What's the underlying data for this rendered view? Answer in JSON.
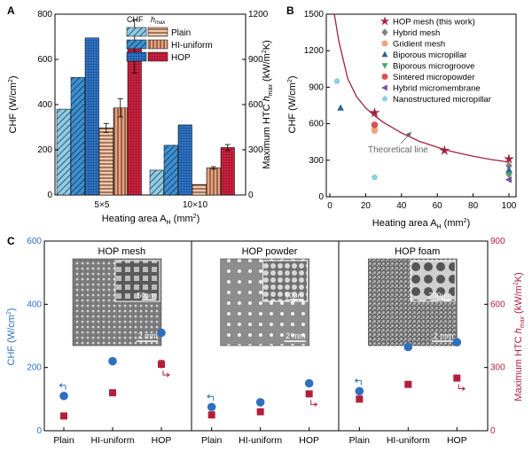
{
  "panels": {
    "a": "A",
    "b": "B",
    "c": "C"
  },
  "chart_data": [
    {
      "type": "bar",
      "panel": "A",
      "xlabel": "Heating area A",
      "xlabel_sub": "H",
      "xlabel_unit": " (mm",
      "xlabel_sup": "2",
      "xlabel_end": ")",
      "ylabel_left": "CHF (W/cm",
      "ylabel_left_sup": "2",
      "ylabel_left_end": ")",
      "ylabel_right": "Maximum HTC ",
      "ylabel_right_italic": "h",
      "ylabel_right_sub": "max",
      "ylabel_right_unit": " (kW/m",
      "ylabel_right_sup": "2",
      "ylabel_right_end": "K)",
      "ylim_left": [
        0,
        800
      ],
      "ylim_right": [
        0,
        1200
      ],
      "yticks_left": [
        "0",
        "200",
        "400",
        "600",
        "800"
      ],
      "yticks_right": [
        "0",
        "300",
        "600",
        "900",
        "1200"
      ],
      "categories": [
        "5×5",
        "10×10"
      ],
      "legend_header_chf": "CHF",
      "legend_header_h": "h",
      "legend_header_h_sub": "max",
      "legend_labels": [
        "Plain",
        "HI-uniform",
        "HOP"
      ],
      "series": [
        {
          "name": "CHF Plain",
          "axis": "left",
          "values": [
            380,
            110
          ]
        },
        {
          "name": "CHF HI-uniform",
          "axis": "left",
          "values": [
            520,
            220
          ]
        },
        {
          "name": "CHF HOP",
          "axis": "left",
          "values": [
            695,
            310
          ]
        },
        {
          "name": "hmax Plain",
          "axis": "right",
          "values": [
            445,
            70
          ],
          "err": [
            30,
            0
          ]
        },
        {
          "name": "hmax HI-uniform",
          "axis": "right",
          "values": [
            578,
            180
          ],
          "err": [
            60,
            8
          ]
        },
        {
          "name": "hmax HOP",
          "axis": "right",
          "values": [
            985,
            315
          ],
          "err": [
            175,
            20
          ]
        }
      ]
    },
    {
      "type": "scatter",
      "panel": "B",
      "xlabel": "Heating area A",
      "xlabel_sub": "H",
      "xlabel_unit": " (mm",
      "xlabel_sup": "2",
      "xlabel_end": ")",
      "ylabel": "CHF (W/cm",
      "ylabel_sup": "2",
      "ylabel_end": ")",
      "xlim": [
        0,
        100
      ],
      "ylim": [
        0,
        1500
      ],
      "xticks": [
        "0",
        "20",
        "40",
        "60",
        "80",
        "100"
      ],
      "yticks": [
        "0",
        "300",
        "600",
        "900",
        "1200",
        "1500"
      ],
      "annotation": "Theoretical line",
      "series": [
        {
          "name": "HOP mesh (this work)",
          "marker": "star",
          "color": "#a3213f",
          "points": [
            [
              25,
              690
            ],
            [
              64,
              380
            ],
            [
              100,
              310
            ]
          ]
        },
        {
          "name": "Hybrid mesh",
          "marker": "diamond",
          "color": "#808080",
          "points": [
            [
              100,
              255
            ]
          ]
        },
        {
          "name": "Gridient mesh",
          "marker": "circle",
          "color": "#f0a47c",
          "points": [
            [
              25,
              545
            ],
            [
              100,
              190
            ]
          ]
        },
        {
          "name": "Biporous micropillar",
          "marker": "triangle-up",
          "color": "#2f5e9e",
          "points": [
            [
              6,
              730
            ],
            [
              100,
              220
            ]
          ]
        },
        {
          "name": "Biporous microgroove",
          "marker": "triangle-down",
          "color": "#3fa771",
          "points": [
            [
              100,
              180
            ]
          ]
        },
        {
          "name": "Sintered micropowder",
          "marker": "circle",
          "color": "#d9534f",
          "points": [
            [
              25,
              590
            ]
          ]
        },
        {
          "name": "Hybrid micromembrane",
          "marker": "triangle-left",
          "color": "#7b4fa0",
          "points": [
            [
              100,
              140
            ]
          ]
        },
        {
          "name": "Nanostructured micropillar",
          "marker": "pentagon",
          "color": "#8ed0e0",
          "points": [
            [
              4,
              950
            ],
            [
              25,
              160
            ]
          ]
        }
      ],
      "theoretical_line": {
        "x": [
          2.5,
          5,
          10,
          15,
          20,
          25,
          30,
          40,
          50,
          64,
          70,
          80,
          90,
          100
        ],
        "y": [
          1500,
          1280,
          970,
          820,
          730,
          665,
          610,
          525,
          455,
          388,
          365,
          333,
          306,
          285
        ]
      }
    },
    {
      "type": "scatter",
      "panel": "C",
      "ylabel_left": "CHF (W/cm",
      "ylabel_left_sup": "2",
      "ylabel_left_end": ")",
      "ylabel_right": "Maximum HTC ",
      "ylabel_right_italic": "h",
      "ylabel_right_sub": "max",
      "ylabel_right_unit": " (kW/m",
      "ylabel_right_sup": "2",
      "ylabel_right_end": "K)",
      "ylim_left": [
        0,
        600
      ],
      "ylim_right": [
        0,
        900
      ],
      "yticks_left": [
        "0",
        "200",
        "400",
        "600"
      ],
      "yticks_right": [
        "0",
        "300",
        "600",
        "900"
      ],
      "categories": [
        "Plain",
        "HI-uniform",
        "HOP"
      ],
      "groups": [
        {
          "title": "HOP mesh",
          "inset_scale": "50μm",
          "image_scale": "2 mm",
          "chf": [
            110,
            220,
            310
          ],
          "hmax": [
            70,
            180,
            315
          ],
          "hmax_err": [
            0,
            0,
            20
          ]
        },
        {
          "title": "HOP powder",
          "inset_scale": "50μm",
          "image_scale": "2 mm",
          "chf": [
            75,
            90,
            150
          ],
          "hmax": [
            75,
            90,
            175
          ],
          "hmax_err": [
            0,
            0,
            0
          ]
        },
        {
          "title": "HOP foam",
          "inset_scale": "200μm",
          "image_scale": "2 mm",
          "chf": [
            125,
            265,
            280
          ],
          "hmax": [
            150,
            220,
            250
          ],
          "hmax_err": [
            0,
            0,
            0
          ]
        }
      ]
    }
  ]
}
